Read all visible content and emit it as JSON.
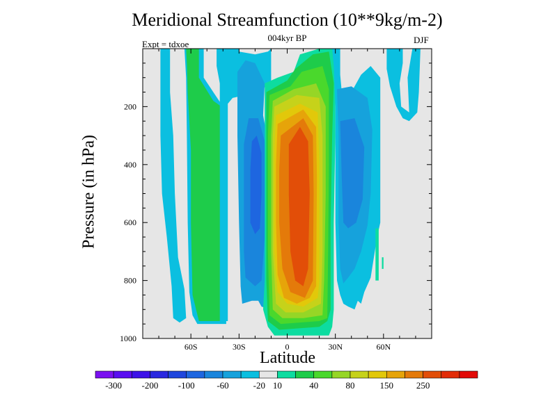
{
  "chart_data": {
    "type": "heatmap",
    "title": "Meridional Streamfunction (10**9kg/m-2)",
    "subtitle": "004kyr BP",
    "left_note": "Expt = tdxoe",
    "right_note": "DJF",
    "xlabel": "Latitude",
    "ylabel": "Pressure (in hPa)",
    "x_range": [
      -90,
      90
    ],
    "y_range": [
      0,
      1000
    ],
    "y_reversed": true,
    "x_ticks": [
      {
        "value": -60,
        "label": "60S"
      },
      {
        "value": -30,
        "label": "30S"
      },
      {
        "value": 0,
        "label": "0"
      },
      {
        "value": 30,
        "label": "30N"
      },
      {
        "value": 60,
        "label": "60N"
      }
    ],
    "y_ticks": [
      {
        "value": 200,
        "label": "200"
      },
      {
        "value": 400,
        "label": "400"
      },
      {
        "value": 600,
        "label": "600"
      },
      {
        "value": 800,
        "label": "800"
      },
      {
        "value": 1000,
        "label": "1000"
      }
    ],
    "missing_color": "#e6e6e6",
    "colorbar": {
      "colors": [
        "#7a10f0",
        "#5a0df0",
        "#3d12e8",
        "#2a28e0",
        "#1f46dd",
        "#1e66e0",
        "#1a85dc",
        "#16a2dc",
        "#0bbfe0",
        "#e6e6e6",
        "#0ddca0",
        "#1ecc4a",
        "#4ad82c",
        "#96d626",
        "#c6d21a",
        "#e2c80a",
        "#e6a40a",
        "#e47a0a",
        "#e24e08",
        "#e22c08",
        "#e20a08"
      ],
      "labels": [
        {
          "index": 1,
          "text": "-300"
        },
        {
          "index": 3,
          "text": "-200"
        },
        {
          "index": 5,
          "text": "-100"
        },
        {
          "index": 7,
          "text": "-60"
        },
        {
          "index": 9,
          "text": "-20"
        },
        {
          "index": 10,
          "text": "10"
        },
        {
          "index": 12,
          "text": "40"
        },
        {
          "index": 14,
          "text": "80"
        },
        {
          "index": 16,
          "text": "150"
        },
        {
          "index": 18,
          "text": "250"
        }
      ]
    },
    "regions": [
      {
        "name": "south-polar-cell-blue",
        "color": "#0bbfe0",
        "polygon": [
          [
            -79,
            0
          ],
          [
            -73,
            0
          ],
          [
            -73,
            150
          ],
          [
            -71,
            300
          ],
          [
            -70,
            500
          ],
          [
            -68,
            720
          ],
          [
            -64,
            830
          ],
          [
            -63,
            930
          ],
          [
            -67,
            945
          ],
          [
            -71,
            930
          ],
          [
            -72,
            820
          ],
          [
            -75,
            650
          ],
          [
            -78,
            500
          ],
          [
            -79,
            300
          ],
          [
            -79,
            150
          ]
        ]
      },
      {
        "name": "south-subtropical-outer",
        "color": "#0bbfe0",
        "polygon": [
          [
            -64,
            0
          ],
          [
            -52,
            0
          ],
          [
            -52,
            100
          ],
          [
            -46,
            150
          ],
          [
            -40,
            200
          ],
          [
            -38,
            260
          ],
          [
            -38,
            950
          ],
          [
            -56,
            950
          ],
          [
            -59,
            920
          ],
          [
            -61,
            840
          ],
          [
            -62,
            600
          ],
          [
            -62.5,
            300
          ],
          [
            -63,
            100
          ]
        ]
      },
      {
        "name": "south-subtropical-green",
        "color": "#1ecc4a",
        "polygon": [
          [
            -63,
            0
          ],
          [
            -55,
            0
          ],
          [
            -55,
            100
          ],
          [
            -46,
            180
          ],
          [
            -41,
            200
          ],
          [
            -40,
            300
          ],
          [
            -40,
            940
          ],
          [
            -55,
            940
          ],
          [
            -59,
            850
          ],
          [
            -60,
            600
          ],
          [
            -60,
            350
          ],
          [
            -62,
            150
          ],
          [
            -62.5,
            50
          ]
        ]
      },
      {
        "name": "south-midlatitude-blue",
        "color": "#0bbfe0",
        "polygon": [
          [
            -44,
            0
          ],
          [
            -30,
            0
          ],
          [
            -30,
            10
          ],
          [
            -20,
            20
          ],
          [
            -12,
            10
          ],
          [
            -10,
            0
          ],
          [
            -10,
            120
          ],
          [
            -16,
            140
          ],
          [
            -26,
            160
          ],
          [
            -34,
            170
          ],
          [
            -37,
            190
          ],
          [
            -37,
            940
          ],
          [
            -42,
            940
          ],
          [
            -42,
            120
          ],
          [
            -44,
            60
          ]
        ]
      },
      {
        "name": "south-midlatitude-dark",
        "color": "#16a2dc",
        "polygon": [
          [
            -26,
            40
          ],
          [
            -20,
            50
          ],
          [
            -14,
            120
          ],
          [
            -15,
            230
          ],
          [
            -11,
            350
          ],
          [
            -11,
            900
          ],
          [
            -16,
            890
          ],
          [
            -18,
            870
          ],
          [
            -22,
            870
          ],
          [
            -28,
            880
          ],
          [
            -29,
            820
          ],
          [
            -30,
            600
          ],
          [
            -31,
            300
          ],
          [
            -31,
            80
          ]
        ]
      },
      {
        "name": "south-ferrel-core",
        "color": "#1a85dc",
        "polygon": [
          [
            -18,
            240
          ],
          [
            -14,
            320
          ],
          [
            -13,
            400
          ],
          [
            -14,
            650
          ],
          [
            -16,
            800
          ],
          [
            -20,
            820
          ],
          [
            -26,
            790
          ],
          [
            -27,
            700
          ],
          [
            -27,
            330
          ],
          [
            -24,
            240
          ]
        ]
      },
      {
        "name": "south-ferrel-inner",
        "color": "#1e66e0",
        "polygon": [
          [
            -19,
            300
          ],
          [
            -16,
            360
          ],
          [
            -16,
            500
          ],
          [
            -17,
            620
          ],
          [
            -20,
            640
          ],
          [
            -23,
            600
          ],
          [
            -23,
            420
          ],
          [
            -22,
            320
          ]
        ]
      },
      {
        "name": "hadley-teal",
        "color": "#0ddca0",
        "polygon": [
          [
            -14,
            120
          ],
          [
            -6,
            100
          ],
          [
            4,
            80
          ],
          [
            8,
            20
          ],
          [
            20,
            0
          ],
          [
            31,
            0
          ],
          [
            31,
            60
          ],
          [
            30,
            150
          ],
          [
            30,
            300
          ],
          [
            29,
            600
          ],
          [
            29,
            900
          ],
          [
            28,
            960
          ],
          [
            26,
            990
          ],
          [
            -8,
            990
          ],
          [
            -12,
            960
          ],
          [
            -15,
            900
          ],
          [
            -14,
            800
          ],
          [
            -14,
            300
          ]
        ]
      },
      {
        "name": "hadley-green",
        "color": "#1ecc4a",
        "polygon": [
          [
            -13,
            150
          ],
          [
            0,
            110
          ],
          [
            5,
            70
          ],
          [
            16,
            20
          ],
          [
            26,
            10
          ],
          [
            29,
            120
          ],
          [
            28,
            300
          ],
          [
            27,
            600
          ],
          [
            27,
            900
          ],
          [
            25,
            940
          ],
          [
            20,
            960
          ],
          [
            -5,
            970
          ],
          [
            -12,
            940
          ],
          [
            -13,
            800
          ]
        ]
      },
      {
        "name": "hadley-lime",
        "color": "#4ad82c",
        "polygon": [
          [
            -11,
            160
          ],
          [
            2,
            130
          ],
          [
            9,
            80
          ],
          [
            22,
            60
          ],
          [
            26,
            140
          ],
          [
            26,
            400
          ],
          [
            25.5,
            700
          ],
          [
            25,
            930
          ],
          [
            20,
            940
          ],
          [
            -4,
            950
          ],
          [
            -11,
            920
          ],
          [
            -12,
            700
          ],
          [
            -12,
            300
          ]
        ]
      },
      {
        "name": "hadley-yellowgreen",
        "color": "#96d626",
        "polygon": [
          [
            -9,
            180
          ],
          [
            4,
            140
          ],
          [
            18,
            120
          ],
          [
            24,
            200
          ],
          [
            24,
            500
          ],
          [
            23,
            800
          ],
          [
            22,
            920
          ],
          [
            10,
            930
          ],
          [
            -3,
            930
          ],
          [
            -9,
            900
          ],
          [
            -10,
            700
          ],
          [
            -10,
            300
          ]
        ]
      },
      {
        "name": "hadley-yellow",
        "color": "#c6d21a",
        "polygon": [
          [
            -8,
            200
          ],
          [
            6,
            160
          ],
          [
            20,
            170
          ],
          [
            22,
            300
          ],
          [
            22,
            700
          ],
          [
            21,
            880
          ],
          [
            10,
            910
          ],
          [
            -1,
            910
          ],
          [
            -7,
            880
          ],
          [
            -9,
            700
          ],
          [
            -9,
            300
          ]
        ]
      },
      {
        "name": "hadley-amber",
        "color": "#e2c80a",
        "polygon": [
          [
            -7,
            230
          ],
          [
            8,
            190
          ],
          [
            19,
            220
          ],
          [
            20,
            400
          ],
          [
            20,
            800
          ],
          [
            19,
            860
          ],
          [
            10,
            890
          ],
          [
            0,
            880
          ],
          [
            -6,
            840
          ],
          [
            -8,
            700
          ],
          [
            -8,
            350
          ]
        ]
      },
      {
        "name": "hadley-orange-light",
        "color": "#e6a40a",
        "polygon": [
          [
            -6,
            260
          ],
          [
            10,
            210
          ],
          [
            18,
            270
          ],
          [
            18.5,
            450
          ],
          [
            18,
            820
          ],
          [
            14,
            860
          ],
          [
            6,
            880
          ],
          [
            -2,
            860
          ],
          [
            -6,
            780
          ],
          [
            -7,
            600
          ],
          [
            -7,
            400
          ]
        ]
      },
      {
        "name": "hadley-orange",
        "color": "#e47a0a",
        "polygon": [
          [
            -4,
            300
          ],
          [
            10,
            240
          ],
          [
            16,
            300
          ],
          [
            16.5,
            500
          ],
          [
            16,
            800
          ],
          [
            11,
            860
          ],
          [
            2,
            840
          ],
          [
            -3,
            760
          ],
          [
            -5,
            600
          ],
          [
            -5,
            420
          ]
        ]
      },
      {
        "name": "hadley-red-orange",
        "color": "#e24e08",
        "polygon": [
          [
            1,
            330
          ],
          [
            8,
            270
          ],
          [
            13,
            320
          ],
          [
            14,
            500
          ],
          [
            13,
            760
          ],
          [
            10,
            820
          ],
          [
            5,
            800
          ],
          [
            2,
            700
          ],
          [
            1,
            500
          ]
        ]
      },
      {
        "name": "north-ferrel-outer",
        "color": "#0bbfe0",
        "polygon": [
          [
            28,
            0
          ],
          [
            33,
            0
          ],
          [
            33,
            90
          ],
          [
            34,
            150
          ],
          [
            40,
            150
          ],
          [
            46,
            90
          ],
          [
            52,
            60
          ],
          [
            58,
            100
          ],
          [
            58,
            600
          ],
          [
            56,
            650
          ],
          [
            52,
            790
          ],
          [
            48,
            840
          ],
          [
            46,
            880
          ],
          [
            44,
            870
          ],
          [
            42,
            900
          ],
          [
            38,
            890
          ],
          [
            35,
            880
          ],
          [
            33,
            850
          ],
          [
            31,
            800
          ],
          [
            30,
            600
          ],
          [
            30,
            200
          ],
          [
            29,
            60
          ]
        ]
      },
      {
        "name": "north-ferrel-mid",
        "color": "#16a2dc",
        "polygon": [
          [
            31,
            140
          ],
          [
            40,
            130
          ],
          [
            50,
            170
          ],
          [
            53,
            280
          ],
          [
            52,
            500
          ],
          [
            50,
            610
          ],
          [
            46,
            700
          ],
          [
            42,
            760
          ],
          [
            38,
            790
          ],
          [
            35,
            810
          ],
          [
            33,
            760
          ],
          [
            32,
            600
          ],
          [
            32,
            300
          ]
        ]
      },
      {
        "name": "north-ferrel-core",
        "color": "#1a85dc",
        "polygon": [
          [
            33,
            250
          ],
          [
            42,
            240
          ],
          [
            48,
            340
          ],
          [
            47,
            520
          ],
          [
            43,
            600
          ],
          [
            38,
            620
          ],
          [
            35,
            600
          ],
          [
            34,
            450
          ]
        ]
      },
      {
        "name": "north-polar-blue",
        "color": "#0bbfe0",
        "polygon": [
          [
            62,
            0
          ],
          [
            72,
            0
          ],
          [
            72,
            50
          ],
          [
            70,
            120
          ],
          [
            71,
            200
          ],
          [
            76,
            220
          ],
          [
            75,
            100
          ],
          [
            78,
            0
          ],
          [
            83,
            0
          ],
          [
            82,
            150
          ],
          [
            81,
            220
          ],
          [
            76,
            250
          ],
          [
            72,
            240
          ],
          [
            68,
            200
          ],
          [
            64,
            130
          ],
          [
            62,
            70
          ]
        ]
      },
      {
        "name": "north-edge-teal",
        "color": "#0ddca0",
        "polygon": [
          [
            55,
            620
          ],
          [
            57,
            620
          ],
          [
            57,
            800
          ],
          [
            55,
            800
          ]
        ]
      },
      {
        "name": "north-edge-teal-small",
        "color": "#0ddca0",
        "polygon": [
          [
            59,
            720
          ],
          [
            60,
            720
          ],
          [
            60,
            760
          ],
          [
            59,
            760
          ]
        ]
      }
    ]
  }
}
